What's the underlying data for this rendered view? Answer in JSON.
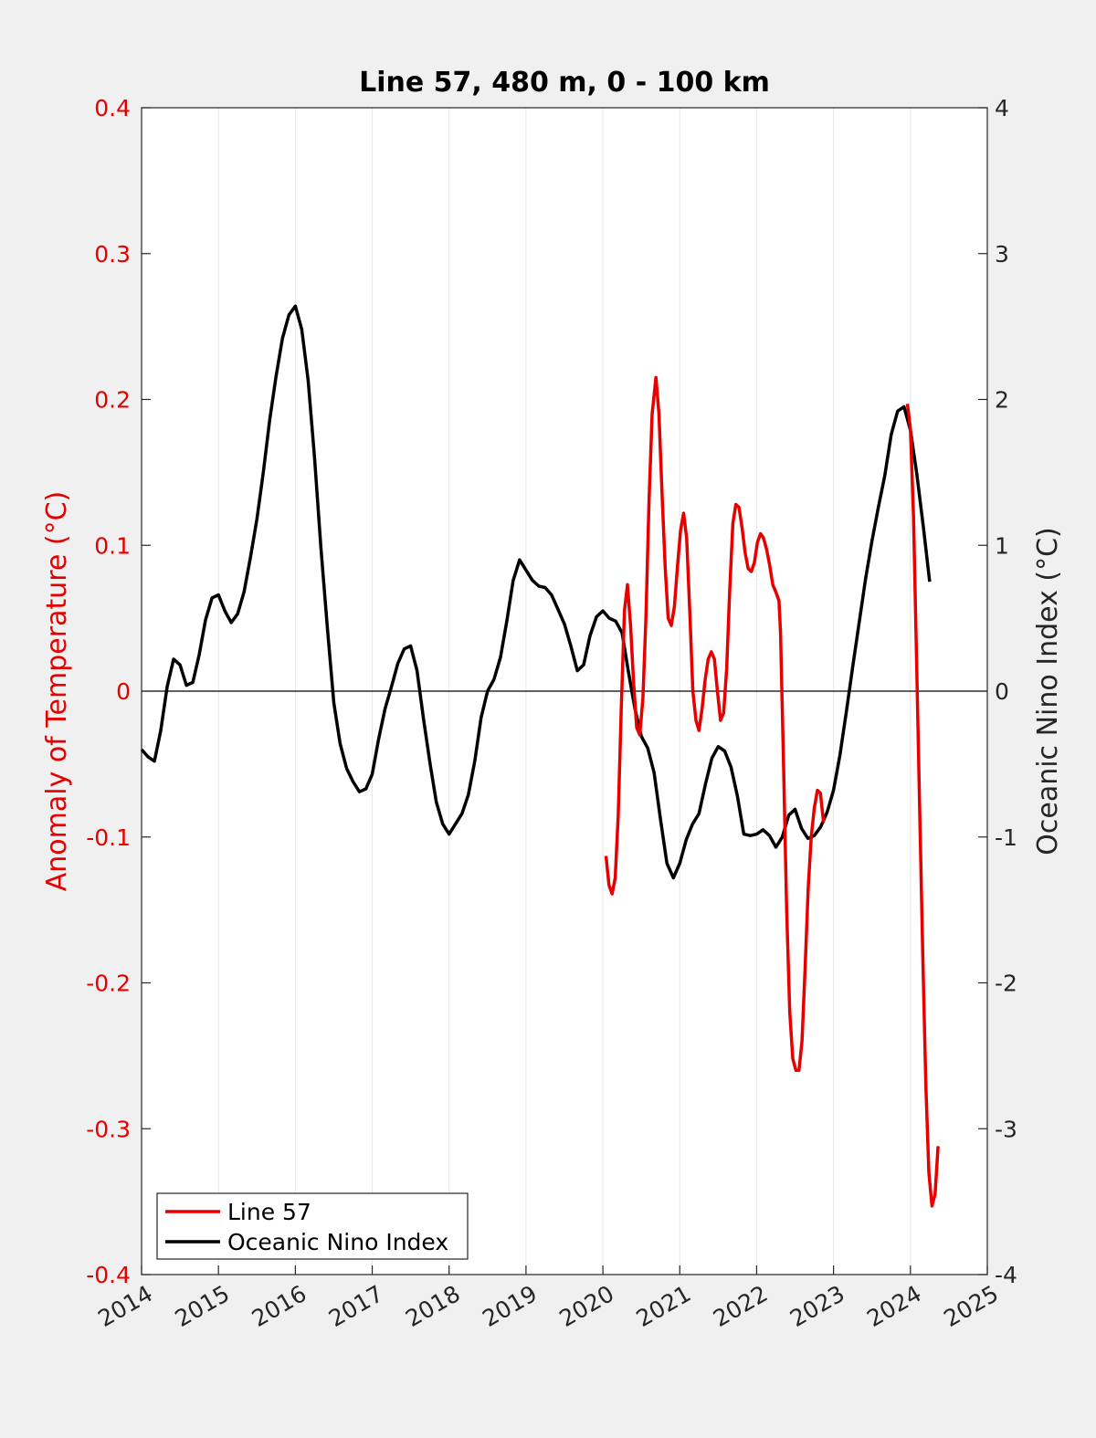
{
  "chart_data": {
    "type": "line",
    "title": "Line 57, 480 m, 0 - 100 km",
    "xlim": [
      2014,
      2025
    ],
    "xticks": [
      "2014",
      "2015",
      "2016",
      "2017",
      "2018",
      "2019",
      "2020",
      "2021",
      "2022",
      "2023",
      "2024",
      "2025"
    ],
    "grid": "vertical gridlines at each year",
    "left_axis": {
      "label": "Anomaly of Temperature (°C)",
      "ylim": [
        -0.4,
        0.4
      ],
      "ticks": [
        "0.4",
        "0.3",
        "0.2",
        "0.1",
        "0",
        "-0.1",
        "-0.2",
        "-0.3",
        "-0.4"
      ],
      "color": "#e60000"
    },
    "right_axis": {
      "label": "Oceanic Nino Index (°C)",
      "ylim": [
        -4,
        4
      ],
      "ticks": [
        "4",
        "3",
        "2",
        "1",
        "0",
        "-1",
        "-2",
        "-3",
        "-4"
      ],
      "color": "#262626"
    },
    "zero_line": true,
    "legend_position": "bottom-left",
    "series": [
      {
        "name": "Line 57",
        "axis": "left",
        "color": "#e60000",
        "segments": [
          [
            [
              2020.04,
              -0.113
            ],
            [
              2020.08,
              -0.133
            ],
            [
              2020.12,
              -0.139
            ],
            [
              2020.16,
              -0.128
            ],
            [
              2020.2,
              -0.085
            ],
            [
              2020.24,
              -0.01
            ],
            [
              2020.28,
              0.055
            ],
            [
              2020.32,
              0.073
            ],
            [
              2020.36,
              0.045
            ],
            [
              2020.4,
              0.005
            ],
            [
              2020.44,
              -0.025
            ],
            [
              2020.48,
              -0.03
            ],
            [
              2020.52,
              -0.005
            ],
            [
              2020.56,
              0.05
            ],
            [
              2020.6,
              0.13
            ],
            [
              2020.64,
              0.19
            ],
            [
              2020.69,
              0.215
            ],
            [
              2020.73,
              0.19
            ],
            [
              2020.77,
              0.135
            ],
            [
              2020.81,
              0.085
            ],
            [
              2020.85,
              0.05
            ],
            [
              2020.89,
              0.045
            ],
            [
              2020.93,
              0.058
            ],
            [
              2020.97,
              0.085
            ],
            [
              2021.01,
              0.11
            ],
            [
              2021.05,
              0.122
            ],
            [
              2021.09,
              0.105
            ],
            [
              2021.13,
              0.055
            ],
            [
              2021.17,
              0.0
            ],
            [
              2021.21,
              -0.02
            ],
            [
              2021.25,
              -0.027
            ],
            [
              2021.29,
              -0.012
            ],
            [
              2021.33,
              0.008
            ],
            [
              2021.37,
              0.022
            ],
            [
              2021.41,
              0.027
            ],
            [
              2021.45,
              0.022
            ],
            [
              2021.49,
              0.0
            ],
            [
              2021.53,
              -0.02
            ],
            [
              2021.57,
              -0.015
            ],
            [
              2021.61,
              0.015
            ],
            [
              2021.65,
              0.07
            ],
            [
              2021.69,
              0.115
            ],
            [
              2021.73,
              0.128
            ],
            [
              2021.77,
              0.126
            ],
            [
              2021.81,
              0.112
            ],
            [
              2021.85,
              0.095
            ],
            [
              2021.89,
              0.084
            ],
            [
              2021.93,
              0.082
            ],
            [
              2021.97,
              0.088
            ],
            [
              2022.01,
              0.102
            ],
            [
              2022.05,
              0.108
            ],
            [
              2022.09,
              0.105
            ],
            [
              2022.13,
              0.097
            ],
            [
              2022.17,
              0.086
            ],
            [
              2022.21,
              0.073
            ],
            [
              2022.25,
              0.068
            ],
            [
              2022.29,
              0.062
            ],
            [
              2022.31,
              0.04
            ],
            [
              2022.35,
              -0.05
            ],
            [
              2022.39,
              -0.15
            ],
            [
              2022.43,
              -0.22
            ],
            [
              2022.47,
              -0.252
            ],
            [
              2022.51,
              -0.26
            ],
            [
              2022.55,
              -0.26
            ],
            [
              2022.59,
              -0.24
            ],
            [
              2022.63,
              -0.19
            ],
            [
              2022.67,
              -0.135
            ],
            [
              2022.71,
              -0.1
            ],
            [
              2022.75,
              -0.08
            ],
            [
              2022.79,
              -0.068
            ],
            [
              2022.83,
              -0.07
            ],
            [
              2022.87,
              -0.09
            ]
          ],
          [
            [
              2023.96,
              0.197
            ],
            [
              2024.0,
              0.18
            ],
            [
              2024.04,
              0.12
            ],
            [
              2024.08,
              0.02
            ],
            [
              2024.12,
              -0.08
            ],
            [
              2024.16,
              -0.18
            ],
            [
              2024.2,
              -0.27
            ],
            [
              2024.24,
              -0.33
            ],
            [
              2024.28,
              -0.353
            ],
            [
              2024.32,
              -0.345
            ],
            [
              2024.36,
              -0.312
            ]
          ]
        ]
      },
      {
        "name": "Oceanic Nino Index",
        "axis": "right",
        "color": "#000000",
        "x": [
          2014.0,
          2014.083,
          2014.167,
          2014.25,
          2014.333,
          2014.417,
          2014.5,
          2014.583,
          2014.667,
          2014.75,
          2014.833,
          2014.917,
          2015.0,
          2015.083,
          2015.167,
          2015.25,
          2015.333,
          2015.417,
          2015.5,
          2015.583,
          2015.667,
          2015.75,
          2015.833,
          2015.917,
          2016.0,
          2016.083,
          2016.167,
          2016.25,
          2016.333,
          2016.417,
          2016.5,
          2016.583,
          2016.667,
          2016.75,
          2016.833,
          2016.917,
          2017.0,
          2017.083,
          2017.167,
          2017.25,
          2017.333,
          2017.417,
          2017.5,
          2017.583,
          2017.667,
          2017.75,
          2017.833,
          2017.917,
          2018.0,
          2018.083,
          2018.167,
          2018.25,
          2018.333,
          2018.417,
          2018.5,
          2018.583,
          2018.667,
          2018.75,
          2018.833,
          2018.917,
          2019.0,
          2019.083,
          2019.167,
          2019.25,
          2019.333,
          2019.417,
          2019.5,
          2019.583,
          2019.667,
          2019.75,
          2019.833,
          2019.917,
          2020.0,
          2020.083,
          2020.167,
          2020.25,
          2020.333,
          2020.417,
          2020.5,
          2020.583,
          2020.667,
          2020.75,
          2020.833,
          2020.917,
          2021.0,
          2021.083,
          2021.167,
          2021.25,
          2021.333,
          2021.417,
          2021.5,
          2021.583,
          2021.667,
          2021.75,
          2021.833,
          2021.917,
          2022.0,
          2022.083,
          2022.167,
          2022.25,
          2022.333,
          2022.417,
          2022.5,
          2022.583,
          2022.667,
          2022.75,
          2022.833,
          2022.917,
          2023.0,
          2023.083,
          2023.167,
          2023.25,
          2023.333,
          2023.417,
          2023.5,
          2023.583,
          2023.667,
          2023.75,
          2023.833,
          2023.917,
          2024.0,
          2024.083,
          2024.167,
          2024.25
        ],
        "values": [
          -0.4,
          -0.45,
          -0.48,
          -0.27,
          0.03,
          0.22,
          0.18,
          0.04,
          0.06,
          0.25,
          0.49,
          0.64,
          0.66,
          0.55,
          0.47,
          0.53,
          0.68,
          0.92,
          1.18,
          1.5,
          1.86,
          2.16,
          2.42,
          2.58,
          2.64,
          2.48,
          2.13,
          1.6,
          0.98,
          0.43,
          -0.08,
          -0.36,
          -0.53,
          -0.62,
          -0.69,
          -0.67,
          -0.57,
          -0.33,
          -0.12,
          0.03,
          0.19,
          0.29,
          0.31,
          0.14,
          -0.19,
          -0.49,
          -0.76,
          -0.91,
          -0.98,
          -0.91,
          -0.84,
          -0.71,
          -0.48,
          -0.18,
          0.0,
          0.08,
          0.23,
          0.48,
          0.76,
          0.9,
          0.83,
          0.76,
          0.72,
          0.71,
          0.66,
          0.56,
          0.46,
          0.31,
          0.14,
          0.18,
          0.38,
          0.51,
          0.55,
          0.5,
          0.48,
          0.4,
          0.13,
          -0.12,
          -0.31,
          -0.39,
          -0.56,
          -0.88,
          -1.18,
          -1.28,
          -1.18,
          -1.02,
          -0.91,
          -0.84,
          -0.64,
          -0.46,
          -0.38,
          -0.41,
          -0.52,
          -0.72,
          -0.98,
          -0.99,
          -0.98,
          -0.95,
          -0.99,
          -1.07,
          -1.0,
          -0.85,
          -0.81,
          -0.94,
          -1.01,
          -0.99,
          -0.93,
          -0.83,
          -0.68,
          -0.44,
          -0.14,
          0.17,
          0.47,
          0.77,
          1.03,
          1.26,
          1.48,
          1.76,
          1.92,
          1.95,
          1.79,
          1.49,
          1.13,
          0.75
        ]
      }
    ]
  }
}
